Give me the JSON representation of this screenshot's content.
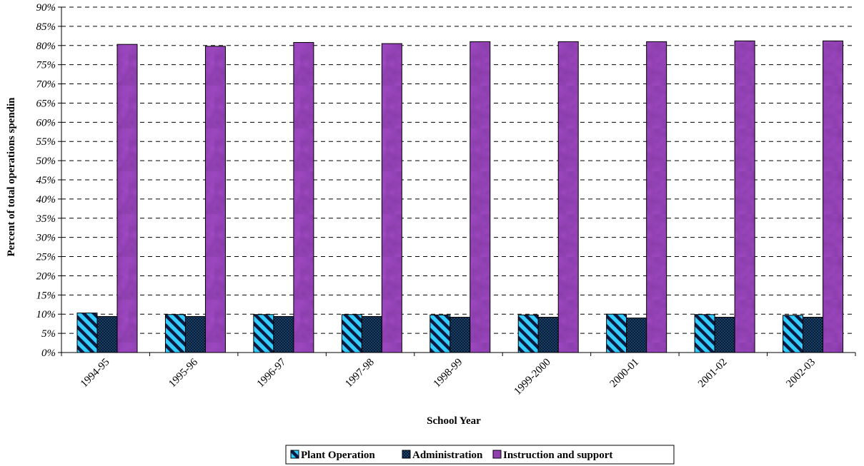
{
  "chart_data": {
    "type": "bar",
    "title": "",
    "xlabel": "School Year",
    "ylabel": "Percent of total operations spendin",
    "ylim": [
      0,
      90
    ],
    "y_tick_step": 5,
    "y_tick_format": "percent",
    "grid": "horizontal dashed",
    "legend_position": "bottom",
    "categories": [
      "1994-95",
      "1995-96",
      "1996-97",
      "1997-98",
      "1998-99",
      "1999-2000",
      "2000-01",
      "2001-02",
      "2002-03"
    ],
    "series": [
      {
        "name": "Plant Operation",
        "color": "#2ec8f0",
        "pattern": "diagonal-stripes",
        "values": [
          10.3,
          9.9,
          9.9,
          9.9,
          9.8,
          9.8,
          10.0,
          9.9,
          9.7
        ]
      },
      {
        "name": "Administration",
        "color": "#1a4a78",
        "pattern": "crosshatch",
        "values": [
          9.4,
          9.4,
          9.4,
          9.4,
          9.2,
          9.2,
          9.0,
          9.2,
          9.2
        ]
      },
      {
        "name": "Instruction and support",
        "color": "#5a1e82",
        "pattern": "marbled",
        "values": [
          80.3,
          79.8,
          80.8,
          80.5,
          81.0,
          81.0,
          81.0,
          81.2,
          81.2
        ]
      }
    ]
  }
}
